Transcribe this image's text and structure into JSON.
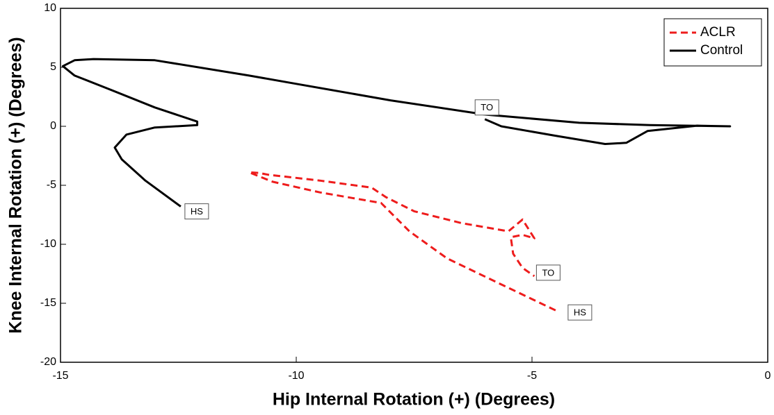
{
  "chart_data": {
    "type": "line",
    "xlabel": "Hip Internal Rotation (+) (Degrees)",
    "ylabel": "Knee Internal Rotation (+) (Degrees)",
    "xlim": [
      -15,
      0
    ],
    "xticks": [
      -15,
      -10,
      -5,
      0
    ],
    "ylim": [
      -20,
      10
    ],
    "yticks": [
      -20,
      -15,
      -10,
      -5,
      0,
      5,
      10
    ],
    "grid": false,
    "legend": "upper right",
    "series": [
      {
        "name": "ACLR",
        "color": "#ee1c1c",
        "dash": true,
        "start_label": "HS",
        "end_label": "TO",
        "x": [
          -4.5,
          -5.6,
          -6.8,
          -7.6,
          -8.2,
          -9.5,
          -10.5,
          -11.0,
          -10.8,
          -10.6,
          -9.5,
          -8.4,
          -8.1,
          -7.5,
          -6.5,
          -5.5,
          -5.2,
          -4.95,
          -5.2,
          -5.45,
          -5.4,
          -5.2,
          -4.95
        ],
        "values": [
          -15.6,
          -13.5,
          -11.2,
          -8.9,
          -6.5,
          -5.6,
          -4.7,
          -3.9,
          -3.95,
          -4.1,
          -4.6,
          -5.2,
          -6.0,
          -7.2,
          -8.2,
          -8.9,
          -7.9,
          -9.5,
          -9.2,
          -9.4,
          -10.8,
          -12.0,
          -12.7
        ]
      },
      {
        "name": "Control",
        "color": "#000000",
        "dash": false,
        "start_label": "HS",
        "end_label": "TO",
        "x": [
          -12.45,
          -13.2,
          -13.7,
          -13.85,
          -13.6,
          -13.0,
          -12.1,
          -12.1,
          -13.0,
          -14.0,
          -14.7,
          -14.95,
          -14.7,
          -14.3,
          -13.0,
          -11.0,
          -10.0,
          -8.0,
          -6.0,
          -4.0,
          -2.5,
          -0.8,
          -1.5,
          -2.55,
          -3.0,
          -3.45,
          -4.5,
          -5.65,
          -6.0
        ],
        "values": [
          -6.8,
          -4.6,
          -2.8,
          -1.8,
          -0.7,
          -0.1,
          0.1,
          0.4,
          1.6,
          3.2,
          4.3,
          5.1,
          5.6,
          5.7,
          5.6,
          4.3,
          3.6,
          2.2,
          1.0,
          0.3,
          0.1,
          0.0,
          0.05,
          -0.4,
          -1.4,
          -1.5,
          -0.8,
          0.0,
          0.6
        ]
      }
    ]
  }
}
